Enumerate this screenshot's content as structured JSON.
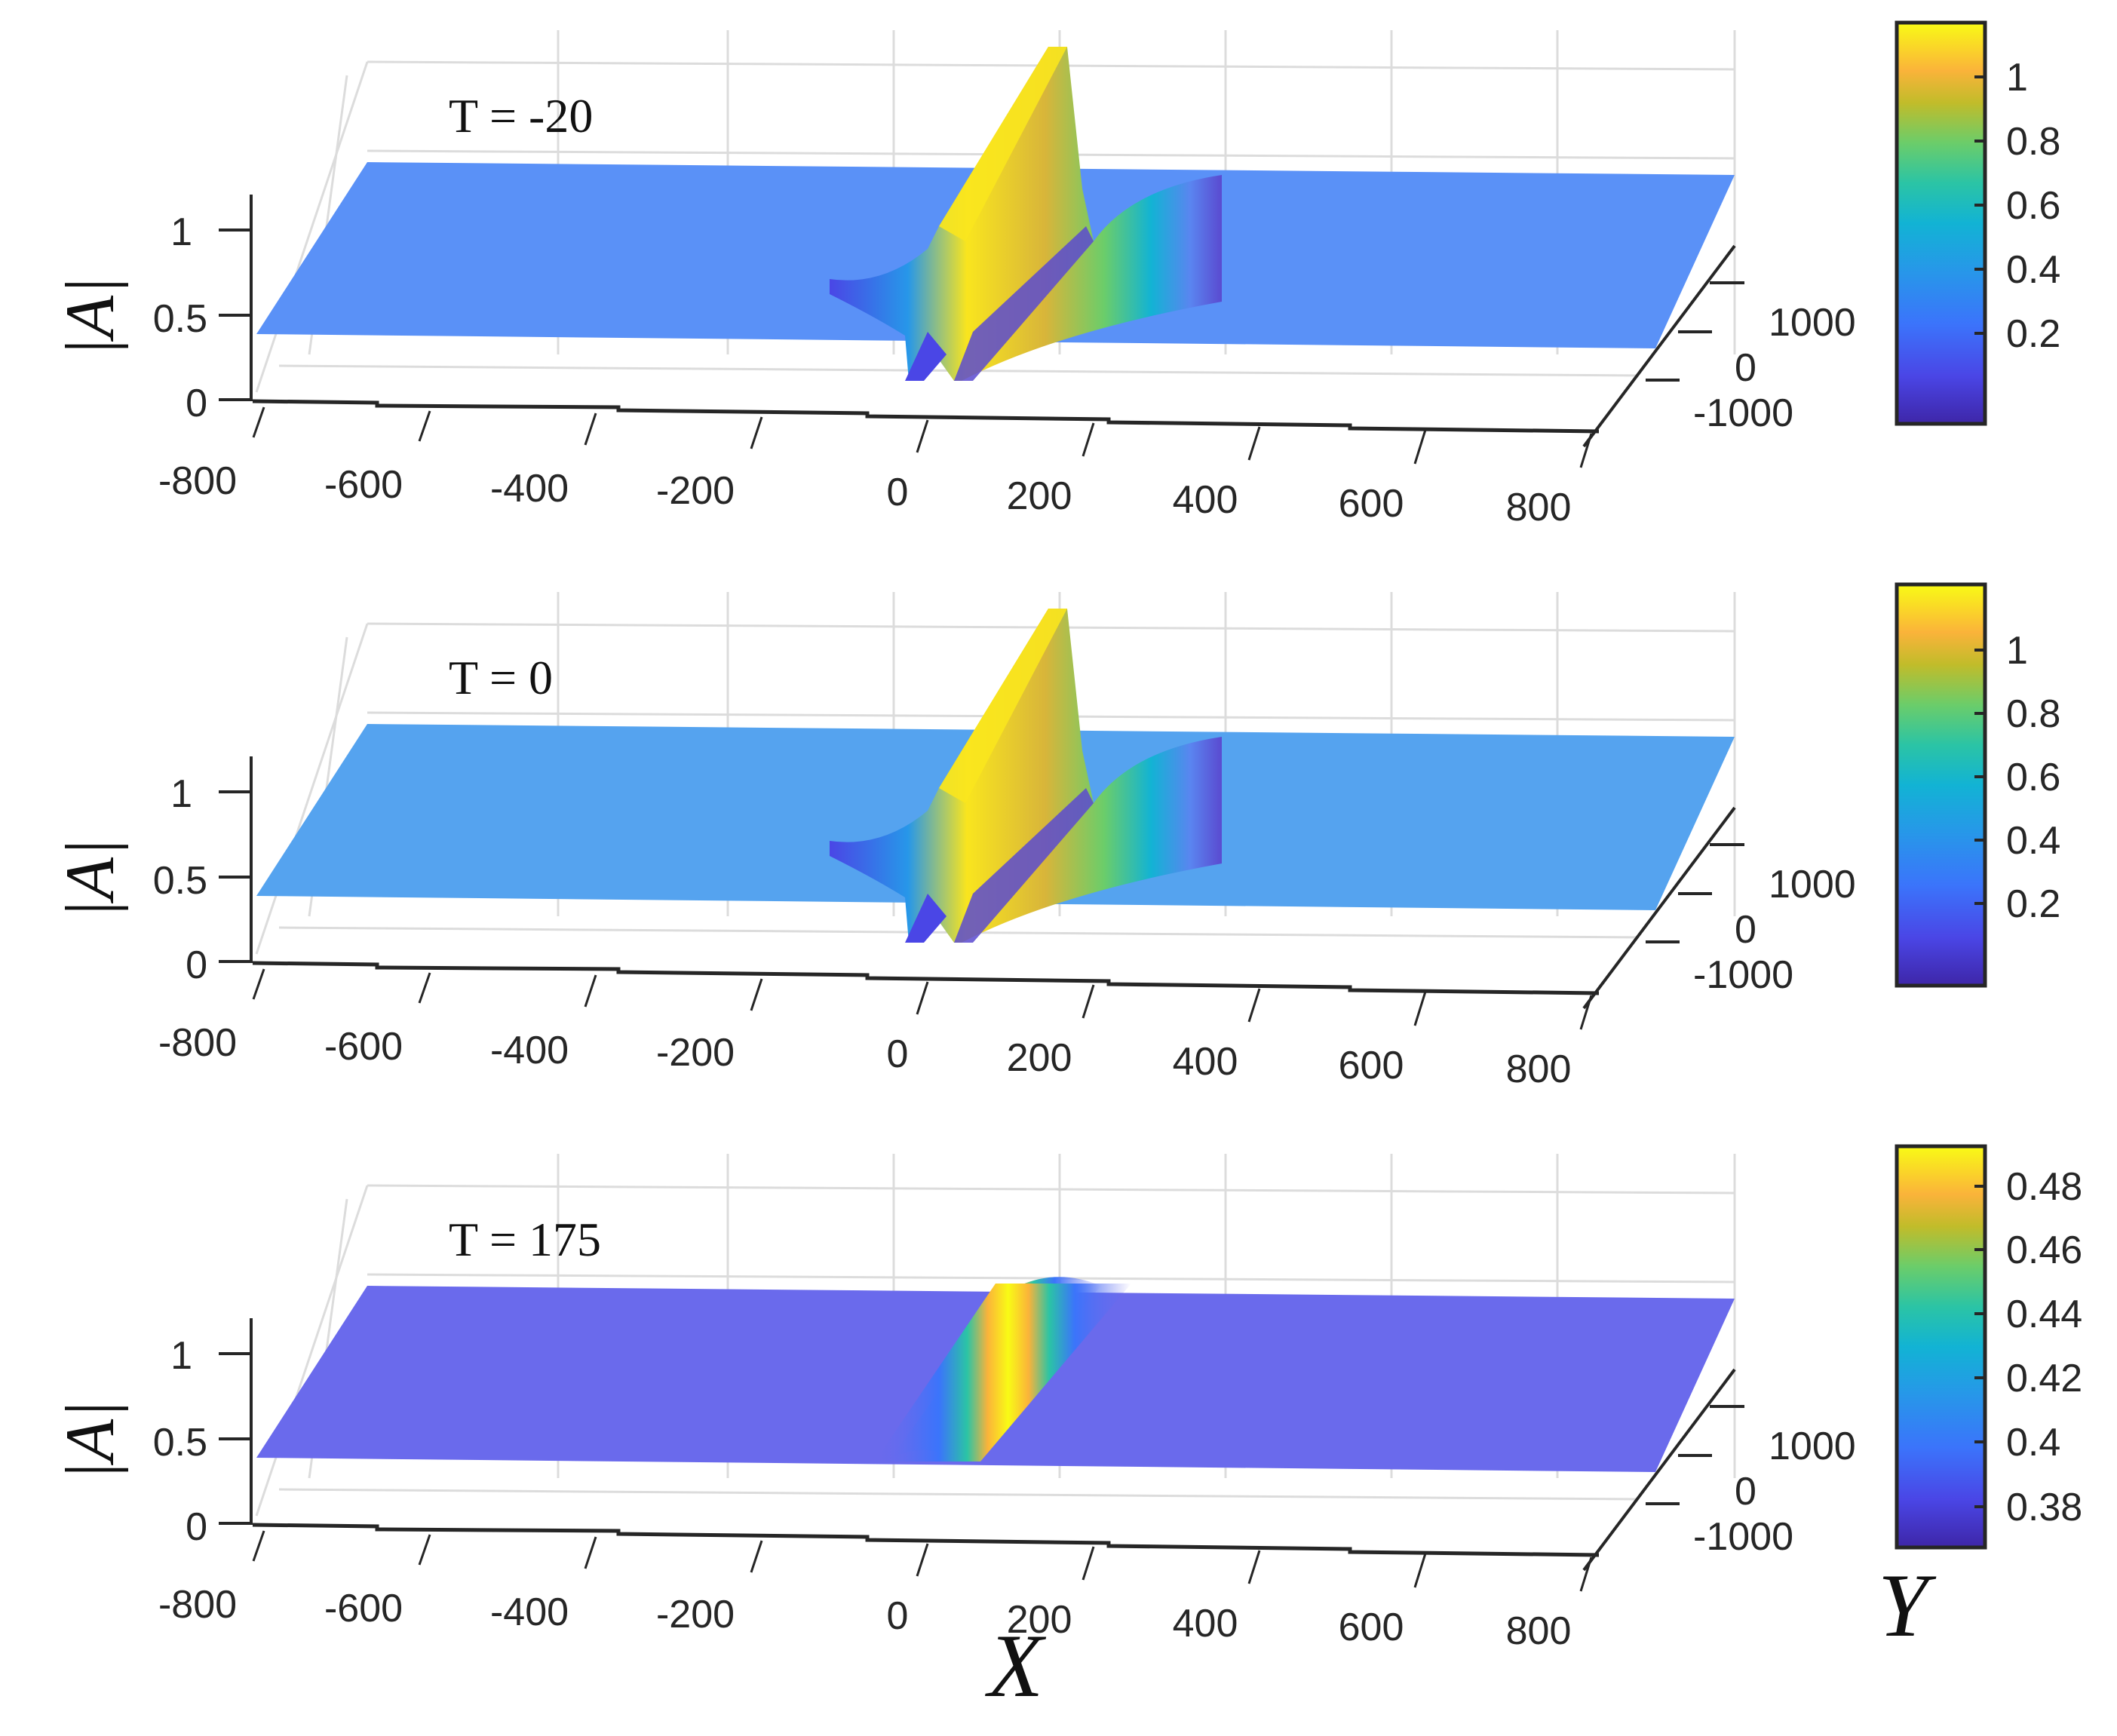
{
  "figure": {
    "x_axis_title": "X",
    "y_axis_title": "Y",
    "z_axis_title": "|A|",
    "x_ticks": [
      "-800",
      "-600",
      "-400",
      "-200",
      "0",
      "200",
      "400",
      "600",
      "800"
    ],
    "y_ticks": [
      "-1000",
      "0",
      "1000"
    ],
    "z_ticks": [
      "0",
      "0.5",
      "1"
    ]
  },
  "panels": [
    {
      "label": "T = -20",
      "colorbar_ticks": [
        "1",
        "0.8",
        "0.6",
        "0.4",
        "0.2"
      ],
      "surface_color": "#5a91f7"
    },
    {
      "label": "T = 0",
      "colorbar_ticks": [
        "1",
        "0.8",
        "0.6",
        "0.4",
        "0.2"
      ],
      "surface_color": "#55a3ef"
    },
    {
      "label": "T = 175",
      "colorbar_ticks": [
        "0.48",
        "0.46",
        "0.44",
        "0.42",
        "0.4",
        "0.38"
      ],
      "surface_color": "#6a6aec"
    }
  ],
  "chart_data": [
    {
      "type": "surface",
      "title": "T = -20",
      "xlabel": "X",
      "ylabel": "Y",
      "zlabel": "|A|",
      "xlim": [
        -900,
        900
      ],
      "ylim": [
        -1500,
        1500
      ],
      "zlim": [
        0,
        1.2
      ],
      "x_ticks": [
        -800,
        -600,
        -400,
        -200,
        0,
        200,
        400,
        600,
        800
      ],
      "y_ticks": [
        -1000,
        0,
        1000
      ],
      "z_ticks": [
        0,
        0.5,
        1
      ],
      "background_level": 0.4,
      "features": {
        "peak_max": 1.05,
        "peak_x_center": 60,
        "dip_min": 0.15,
        "shape": "line soliton ridge with adjacent dips"
      },
      "colorbar": {
        "ticks": [
          0.2,
          0.4,
          0.6,
          0.8,
          1
        ],
        "range": [
          0.15,
          1.1
        ],
        "colormap": "parula"
      },
      "grid": true
    },
    {
      "type": "surface",
      "title": "T = 0",
      "xlabel": "X",
      "ylabel": "Y",
      "zlabel": "|A|",
      "xlim": [
        -900,
        900
      ],
      "ylim": [
        -1500,
        1500
      ],
      "zlim": [
        0,
        1.2
      ],
      "x_ticks": [
        -800,
        -600,
        -400,
        -200,
        0,
        200,
        400,
        600,
        800
      ],
      "y_ticks": [
        -1000,
        0,
        1000
      ],
      "z_ticks": [
        0,
        0.5,
        1
      ],
      "background_level": 0.4,
      "features": {
        "peak_max": 1.15,
        "peak_x_center": 60,
        "dip_min": 0.02,
        "shape": "line soliton ridge with adjacent dips"
      },
      "colorbar": {
        "ticks": [
          0.2,
          0.4,
          0.6,
          0.8,
          1
        ],
        "range": [
          0.0,
          1.18
        ],
        "colormap": "parula"
      },
      "grid": true
    },
    {
      "type": "surface",
      "title": "T = 175",
      "xlabel": "X",
      "ylabel": "Y",
      "zlabel": "|A|",
      "xlim": [
        -900,
        900
      ],
      "ylim": [
        -1500,
        1500
      ],
      "zlim": [
        0,
        1.2
      ],
      "x_ticks": [
        -800,
        -600,
        -400,
        -200,
        0,
        200,
        400,
        600,
        800
      ],
      "y_ticks": [
        -1000,
        0,
        1000
      ],
      "z_ticks": [
        0,
        0.5,
        1
      ],
      "background_level": 0.38,
      "features": {
        "peak_max": 0.49,
        "peak_x_center": 100,
        "shape": "smooth low ridge"
      },
      "colorbar": {
        "ticks": [
          0.38,
          0.4,
          0.42,
          0.44,
          0.46,
          0.48
        ],
        "range": [
          0.378,
          0.495
        ],
        "colormap": "parula"
      },
      "grid": true
    }
  ]
}
